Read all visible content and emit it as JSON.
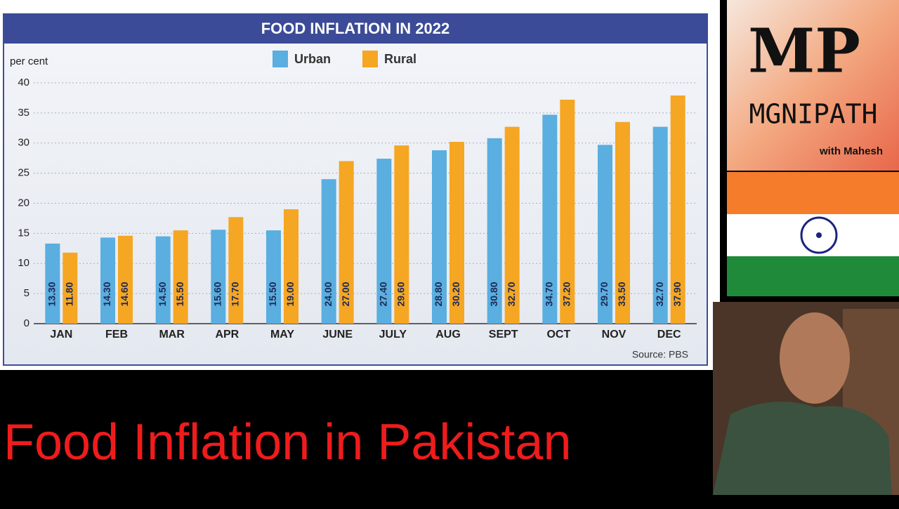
{
  "chart_data": {
    "type": "bar",
    "title": "FOOD INFLATION IN 2022",
    "y_label": "per cent",
    "source": "Source: PBS",
    "categories": [
      "JAN",
      "FEB",
      "MAR",
      "APR",
      "MAY",
      "JUNE",
      "JULY",
      "AUG",
      "SEPT",
      "OCT",
      "NOV",
      "DEC"
    ],
    "series": [
      {
        "name": "Urban",
        "color": "#5aaee0",
        "values": [
          13.3,
          14.3,
          14.5,
          15.6,
          15.5,
          24,
          27.4,
          28.8,
          30.8,
          34.7,
          29.7,
          32.7
        ],
        "value_labels": [
          "13.30",
          "14.30",
          "14.50",
          "15.60",
          "15.50",
          "24.00",
          "27.40",
          "28.80",
          "30.80",
          "34.70",
          "29.70",
          "32.70"
        ]
      },
      {
        "name": "Rural",
        "color": "#f5a623",
        "values": [
          11.8,
          14.6,
          15.5,
          17.7,
          19,
          27,
          29.6,
          30.2,
          32.7,
          37.2,
          33.5,
          37.9
        ],
        "value_labels": [
          "11.80",
          "14.60",
          "15.50",
          "17.70",
          "19.00",
          "27.00",
          "29.60",
          "30.20",
          "32.70",
          "37.20",
          "33.50",
          "37.90"
        ]
      }
    ],
    "ylim": [
      0,
      40
    ],
    "yticks": [
      0,
      5,
      10,
      15,
      20,
      25,
      30,
      35,
      40
    ],
    "grid": true
  },
  "caption": "Food Inflation in Pakistan",
  "logo": {
    "mark": "MP",
    "name": "MGNIPATH",
    "tagline": "with Mahesh"
  }
}
